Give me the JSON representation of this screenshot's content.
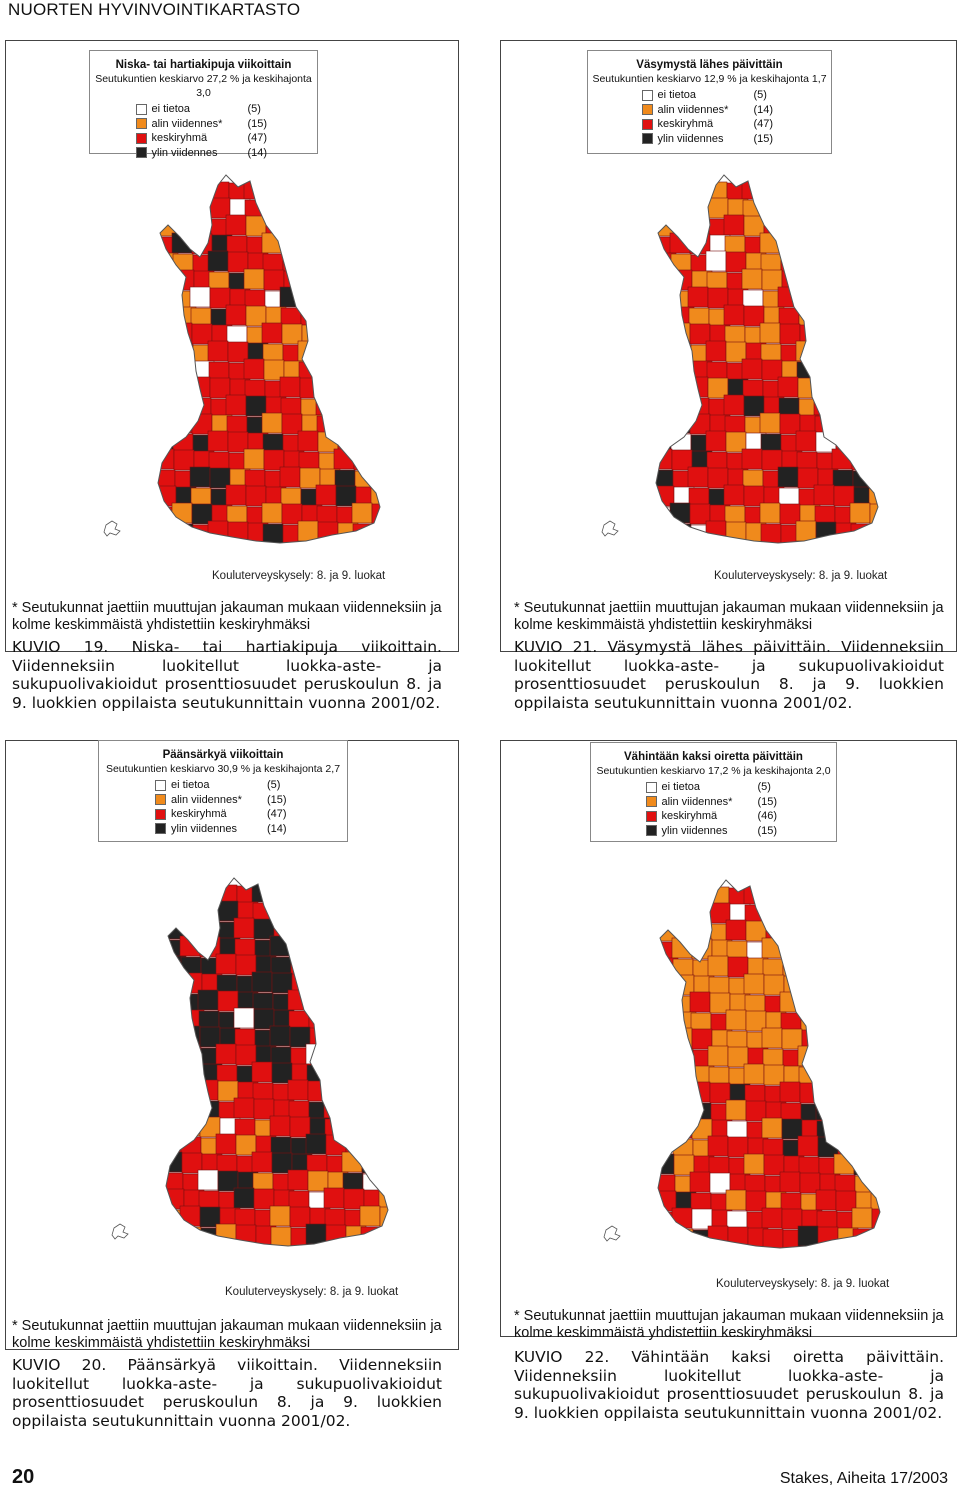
{
  "page": {
    "header": "NUORTEN HYVINVOINTIKARTASTO",
    "page_number": "20",
    "publication": "Stakes, Aiheita 17/2003"
  },
  "colors": {
    "no_data": "#ffffff",
    "lowest_fifth": "#f08a1c",
    "middle_group": "#e01010",
    "highest_fifth": "#222222"
  },
  "panels": [
    {
      "id": "kuvio19",
      "legend_title": "Niska- tai hartiakipuja viikoittain",
      "legend_subtitle": "Seutukuntien keskiarvo 27,2 % ja keskihajonta 3,0",
      "legend_items": [
        {
          "label": "ei tietoa",
          "count": "(5)",
          "color": "#ffffff"
        },
        {
          "label": "alin viidennes*",
          "count": "(15)",
          "color": "#f08a1c"
        },
        {
          "label": "keskiryhmä",
          "count": "(47)",
          "color": "#e01010"
        },
        {
          "label": "ylin viidennes",
          "count": "(14)",
          "color": "#222222"
        }
      ],
      "survey": "Kouluterveyskysely: 8. ja 9. luokat",
      "note": "* Seutukunnat jaettiin muuttujan jakauman mukaan viidenneksiin ja kolme keskimmäistä yhdistettiin keskiryhmäksi",
      "caption": "KUVIO 19. Niska- tai hartiakipuja viikoittain. Viidenneksiin luokitellut luokka-aste- ja sukupuolivakioidut prosenttiosuudet peruskoulun 8. ja 9. luokkien oppilaista seutukunnittain vuonna 2001/02."
    },
    {
      "id": "kuvio21",
      "legend_title": "Väsymystä lähes päivittäin",
      "legend_subtitle": "Seutukuntien keskiarvo 12,9 % ja keskihajonta 1,7",
      "legend_items": [
        {
          "label": "ei tietoa",
          "count": "(5)",
          "color": "#ffffff"
        },
        {
          "label": "alin viidennes*",
          "count": "(14)",
          "color": "#f08a1c"
        },
        {
          "label": "keskiryhmä",
          "count": "(47)",
          "color": "#e01010"
        },
        {
          "label": "ylin viidennes",
          "count": "(15)",
          "color": "#222222"
        }
      ],
      "survey": "Kouluterveyskysely: 8. ja 9. luokat",
      "note": "* Seutukunnat jaettiin muuttujan jakauman mukaan viidenneksiin ja kolme keskimmäistä yhdistettiin keskiryhmäksi",
      "caption": "KUVIO 21. Väsymystä lähes päivittäin. Viidenneksiin luokitellut luokka-aste- ja sukupuolivakioidut prosenttiosuudet peruskoulun 8. ja 9. luokkien oppilaista seutukunnittain vuonna 2001/02."
    },
    {
      "id": "kuvio20",
      "legend_title": "Päänsärkyä viikoittain",
      "legend_subtitle": "Seutukuntien keskiarvo 30,9 % ja keskihajonta 2,7",
      "legend_items": [
        {
          "label": "ei tietoa",
          "count": "(5)",
          "color": "#ffffff"
        },
        {
          "label": "alin viidennes*",
          "count": "(15)",
          "color": "#f08a1c"
        },
        {
          "label": "keskiryhmä",
          "count": "(47)",
          "color": "#e01010"
        },
        {
          "label": "ylin viidennes",
          "count": "(14)",
          "color": "#222222"
        }
      ],
      "survey": "Kouluterveyskysely: 8. ja 9. luokat",
      "note": "* Seutukunnat jaettiin muuttujan jakauman mukaan viidenneksiin ja kolme keskimmäistä yhdistettiin keskiryhmäksi",
      "caption": "KUVIO 20. Päänsärkyä viikoittain. Viidenneksiin luokitellut luokka-aste- ja sukupuolivakioidut prosenttiosuudet peruskoulun 8. ja 9. luokkien oppilaista seutukunnittain vuonna 2001/02."
    },
    {
      "id": "kuvio22",
      "legend_title": "Vähintään kaksi oiretta päivittäin",
      "legend_subtitle": "Seutukuntien keskiarvo 17,2 % ja keskihajonta 2,0",
      "legend_items": [
        {
          "label": "ei tietoa",
          "count": "(5)",
          "color": "#ffffff"
        },
        {
          "label": "alin viidennes*",
          "count": "(15)",
          "color": "#f08a1c"
        },
        {
          "label": "keskiryhmä",
          "count": "(46)",
          "color": "#e01010"
        },
        {
          "label": "ylin viidennes",
          "count": "(15)",
          "color": "#222222"
        }
      ],
      "survey": "Kouluterveyskysely: 8. ja 9. luokat",
      "note": "* Seutukunnat jaettiin muuttujan jakauman mukaan viidenneksiin ja kolme keskimmäistä yhdistettiin keskiryhmäksi",
      "caption": "KUVIO 22. Vähintään kaksi oiretta päivittäin. Viidenneksiin luokitellut luokka-aste- ja sukupuolivakioidut prosenttiosuudet peruskoulun 8. ja 9. luokkien oppilaista seutukunnittain vuonna 2001/02."
    }
  ]
}
